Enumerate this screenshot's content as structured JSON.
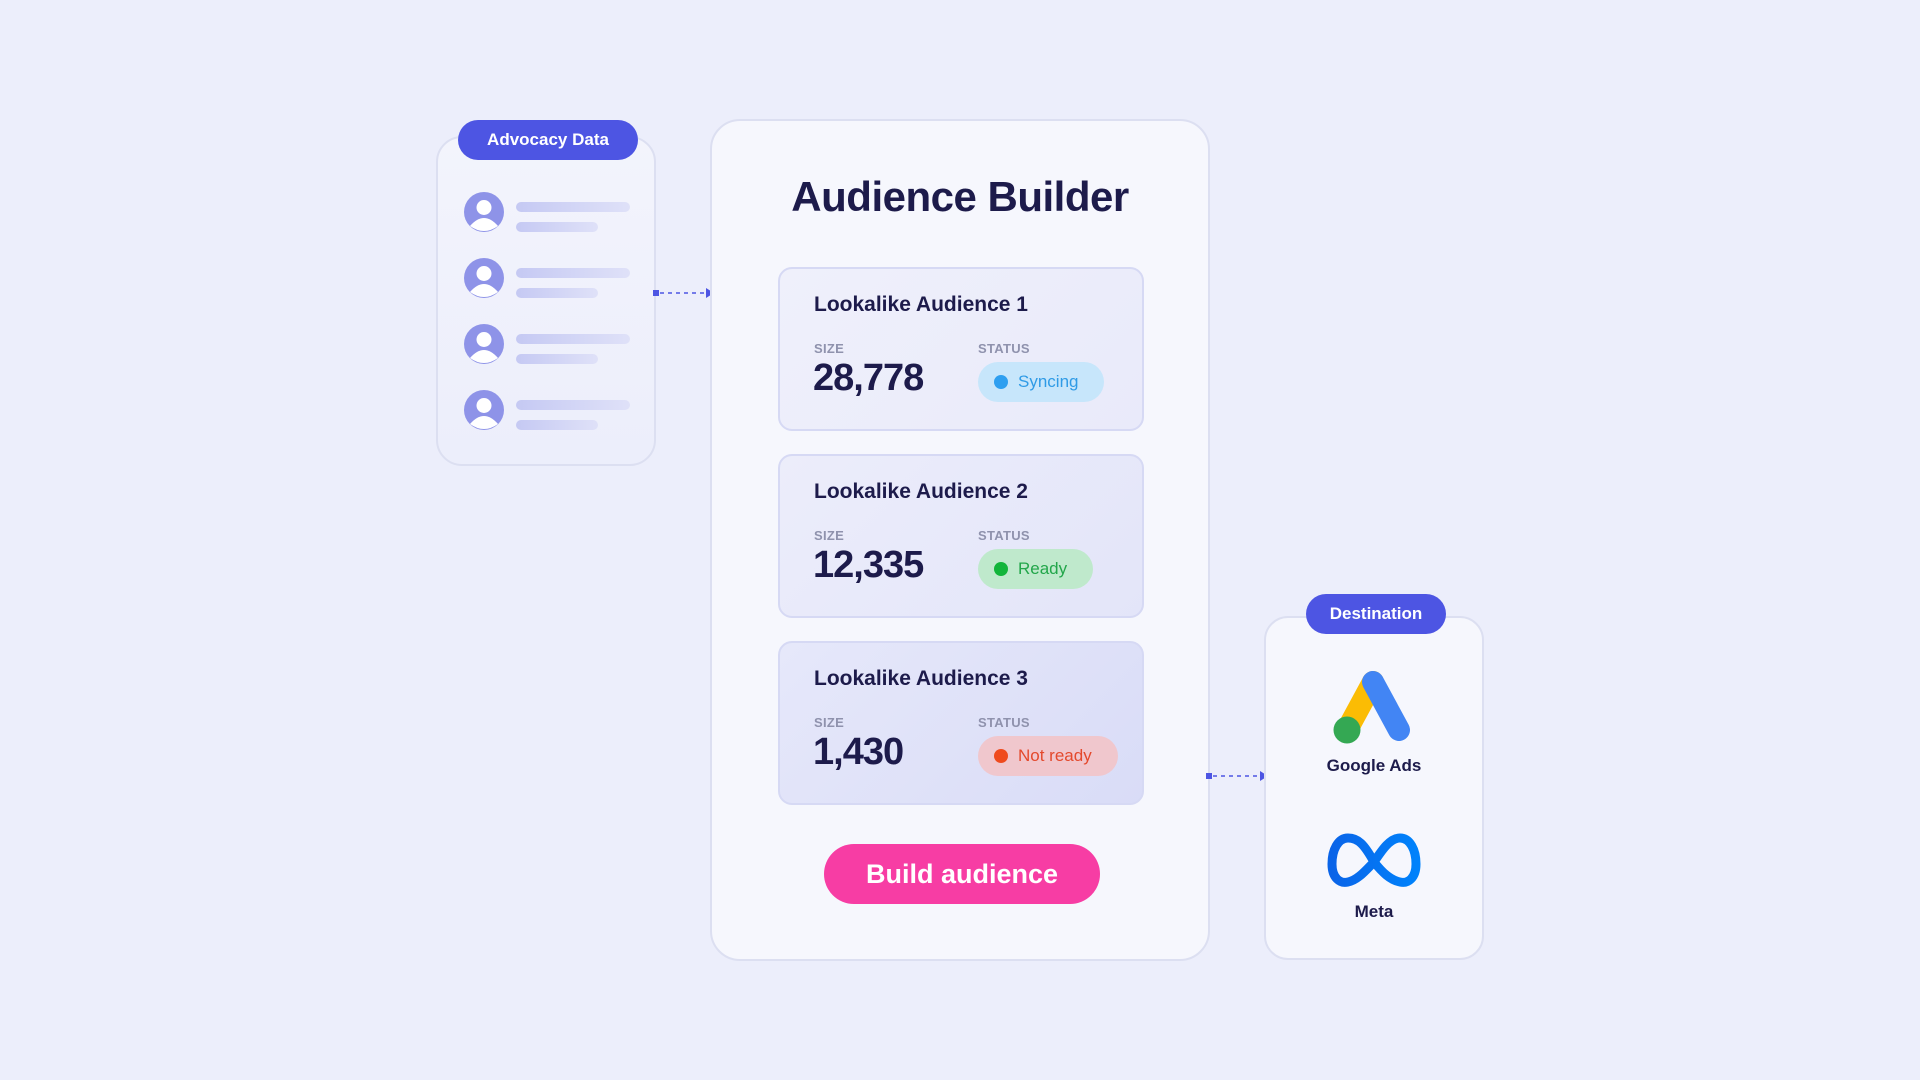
{
  "advocacy": {
    "label": "Advocacy Data",
    "rows": 4
  },
  "builder": {
    "title": "Audience Builder",
    "field_size_label": "SIZE",
    "field_status_label": "STATUS",
    "audiences": [
      {
        "name": "Lookalike Audience 1",
        "size": "28,778",
        "status": "Syncing"
      },
      {
        "name": "Lookalike Audience 2",
        "size": "12,335",
        "status": "Ready"
      },
      {
        "name": "Lookalike Audience 3",
        "size": "1,430",
        "status": "Not ready"
      }
    ],
    "button_label": "Build audience"
  },
  "destination": {
    "label": "Destination",
    "items": [
      {
        "name": "Google Ads",
        "icon": "google-ads-logo"
      },
      {
        "name": "Meta",
        "icon": "meta-logo"
      }
    ]
  },
  "colors": {
    "background": "#eceefb",
    "accent": "#4d55e3",
    "button": "#f73da4",
    "syncing": "#2e9ff0",
    "ready": "#12b53a",
    "not_ready": "#ef4a1d"
  }
}
